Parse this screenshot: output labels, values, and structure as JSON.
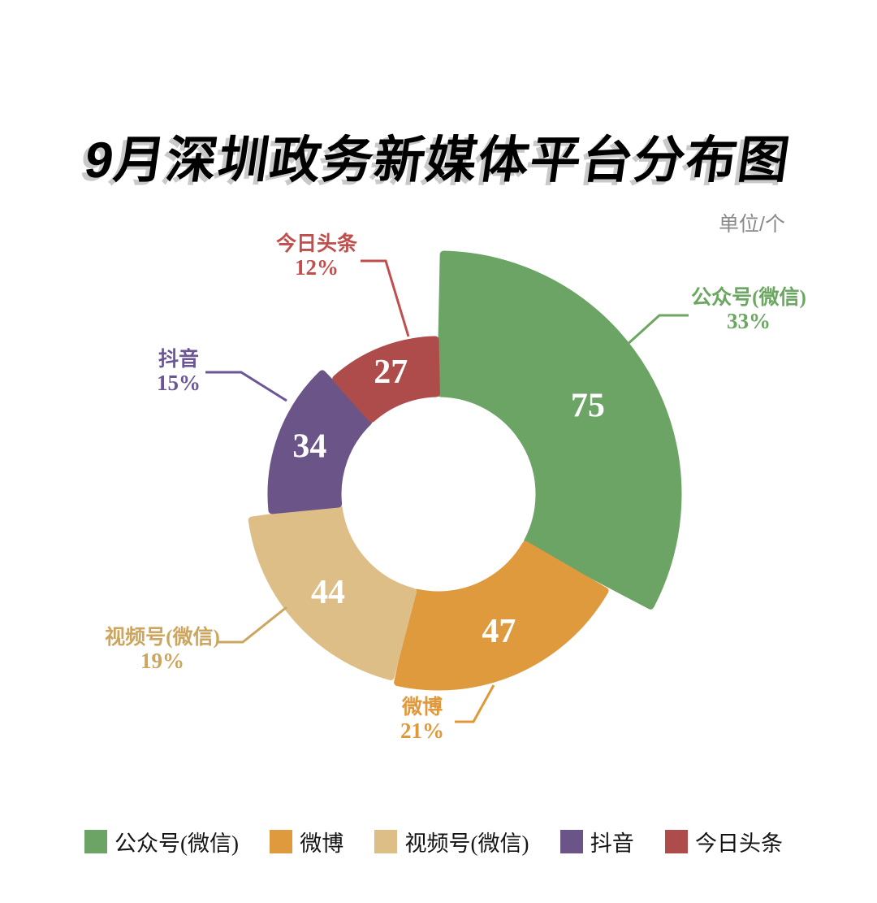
{
  "title": "9月深圳政务新媒体平台分布图",
  "unit_label": "单位/个",
  "chart_data": {
    "type": "pie",
    "subtype": "donut-rose",
    "title": "9月深圳政务新媒体平台分布图",
    "unit": "单位/个",
    "total": 227,
    "start_angle_deg": 0,
    "clockwise": true,
    "pad_angle_deg": 1.2,
    "inner_radius": 124,
    "legend_position": "bottom",
    "series": [
      {
        "name": "公众号(微信)",
        "value": 75,
        "pct": "33%",
        "color": "#6CA465",
        "label_color": "#6BA761",
        "outer_radius": 295
      },
      {
        "name": "微博",
        "value": 47,
        "pct": "21%",
        "color": "#DF9A3E",
        "label_color": "#E0983B",
        "outer_radius": 237
      },
      {
        "name": "视频号(微信)",
        "value": 44,
        "pct": "19%",
        "color": "#DDBE86",
        "label_color": "#CCA55E",
        "outer_radius": 232
      },
      {
        "name": "抖音",
        "value": 34,
        "pct": "15%",
        "color": "#6B5588",
        "label_color": "#6C5596",
        "outer_radius": 206
      },
      {
        "name": "今日头条",
        "value": 27,
        "pct": "12%",
        "color": "#AE4B4B",
        "label_color": "#BF4E4C",
        "outer_radius": 190
      }
    ]
  }
}
